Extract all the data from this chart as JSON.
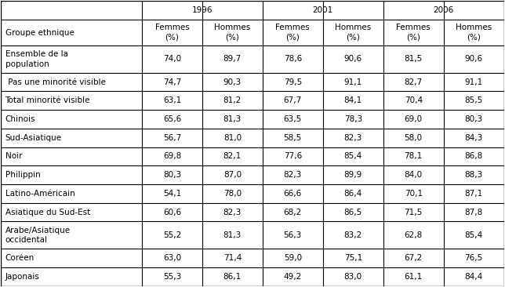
{
  "title": "",
  "col_headers_year": [
    "1996",
    "2001",
    "2006"
  ],
  "col_headers_sub": [
    "Femmes\n(%)",
    "Hommes\n(%)",
    "Femmes\n(%)",
    "Hommes\n(%)",
    "Femmes\n(%)",
    "Hommes\n(%)"
  ],
  "row_header": "Groupe ethnique",
  "rows": [
    {
      "label": "Ensemble de la\npopulation",
      "values": [
        "74,0",
        "89,7",
        "78,6",
        "90,6",
        "81,5",
        "90,6"
      ]
    },
    {
      "label": " Pas une minorité visible",
      "values": [
        "74,7",
        "90,3",
        "79,5",
        "91,1",
        "82,7",
        "91,1"
      ]
    },
    {
      "label": "Total minorité visible",
      "values": [
        "63,1",
        "81,2",
        "67,7",
        "84,1",
        "70,4",
        "85,5"
      ]
    },
    {
      "label": "Chinois",
      "values": [
        "65,6",
        "81,3",
        "63,5",
        "78,3",
        "69,0",
        "80,3"
      ]
    },
    {
      "label": "Sud-Asiatique",
      "values": [
        "56,7",
        "81,0",
        "58,5",
        "82,3",
        "58,0",
        "84,3"
      ]
    },
    {
      "label": "Noir",
      "values": [
        "69,8",
        "82,1",
        "77,6",
        "85,4",
        "78,1",
        "86,8"
      ]
    },
    {
      "label": "Philippin",
      "values": [
        "80,3",
        "87,0",
        "82,3",
        "89,9",
        "84,0",
        "88,3"
      ]
    },
    {
      "label": "Latino-Américain",
      "values": [
        "54,1",
        "78,0",
        "66,6",
        "86,4",
        "70,1",
        "87,1"
      ]
    },
    {
      "label": "Asiatique du Sud-Est",
      "values": [
        "60,6",
        "82,3",
        "68,2",
        "86,5",
        "71,5",
        "87,8"
      ]
    },
    {
      "label": "Arabe/Asiatique\noccidental",
      "values": [
        "55,2",
        "81,3",
        "56,3",
        "83,2",
        "62,8",
        "85,4"
      ]
    },
    {
      "label": "Coréen",
      "values": [
        "63,0",
        "71,4",
        "59,0",
        "75,1",
        "67,2",
        "76,5"
      ]
    },
    {
      "label": "Japonais",
      "values": [
        "55,3",
        "86,1",
        "49,2",
        "83,0",
        "61,1",
        "84,4"
      ]
    }
  ],
  "bg_color": "#ffffff",
  "text_color": "#000000",
  "line_color": "#000000",
  "font_size": 7.5,
  "header_font_size": 7.5
}
